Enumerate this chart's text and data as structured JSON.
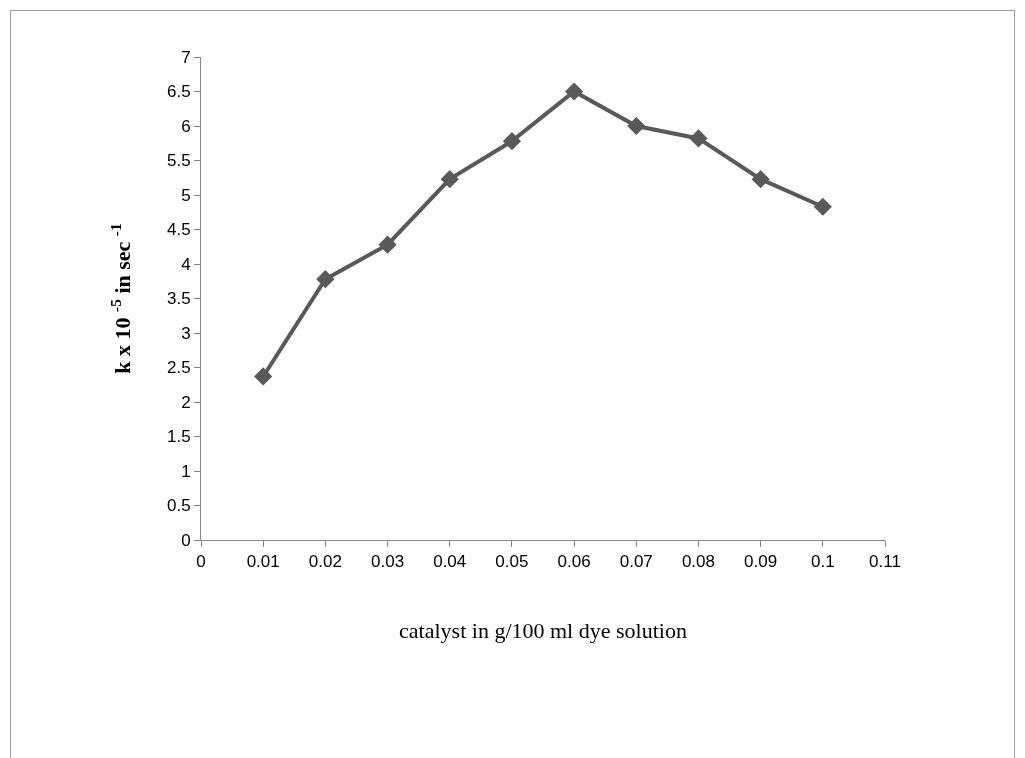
{
  "chart_data": {
    "type": "line",
    "xlabel": "catalyst in g/100 ml dye solution",
    "ylabel": "k x 10 $^{-5}$ in sec $^{-1}$",
    "x": [
      0.01,
      0.02,
      0.03,
      0.04,
      0.05,
      0.06,
      0.07,
      0.08,
      0.09,
      0.1
    ],
    "series": [
      {
        "color": "#595959",
        "values": [
          2.37,
          3.78,
          4.28,
          5.23,
          5.78,
          6.5,
          6.0,
          5.82,
          5.23,
          4.83
        ]
      }
    ],
    "xlim": [
      0,
      0.11
    ],
    "xticks": [
      0,
      0.01,
      0.02,
      0.03,
      0.04,
      0.05,
      0.06,
      0.07,
      0.08,
      0.09,
      0.1,
      0.11
    ],
    "ylim": [
      0,
      7
    ],
    "yticks": [
      0,
      0.5,
      1,
      1.5,
      2,
      2.5,
      3,
      3.5,
      4,
      4.5,
      5,
      5.5,
      6,
      6.5,
      7
    ],
    "grid": false,
    "marker": "diamond",
    "line_style": "solid"
  }
}
